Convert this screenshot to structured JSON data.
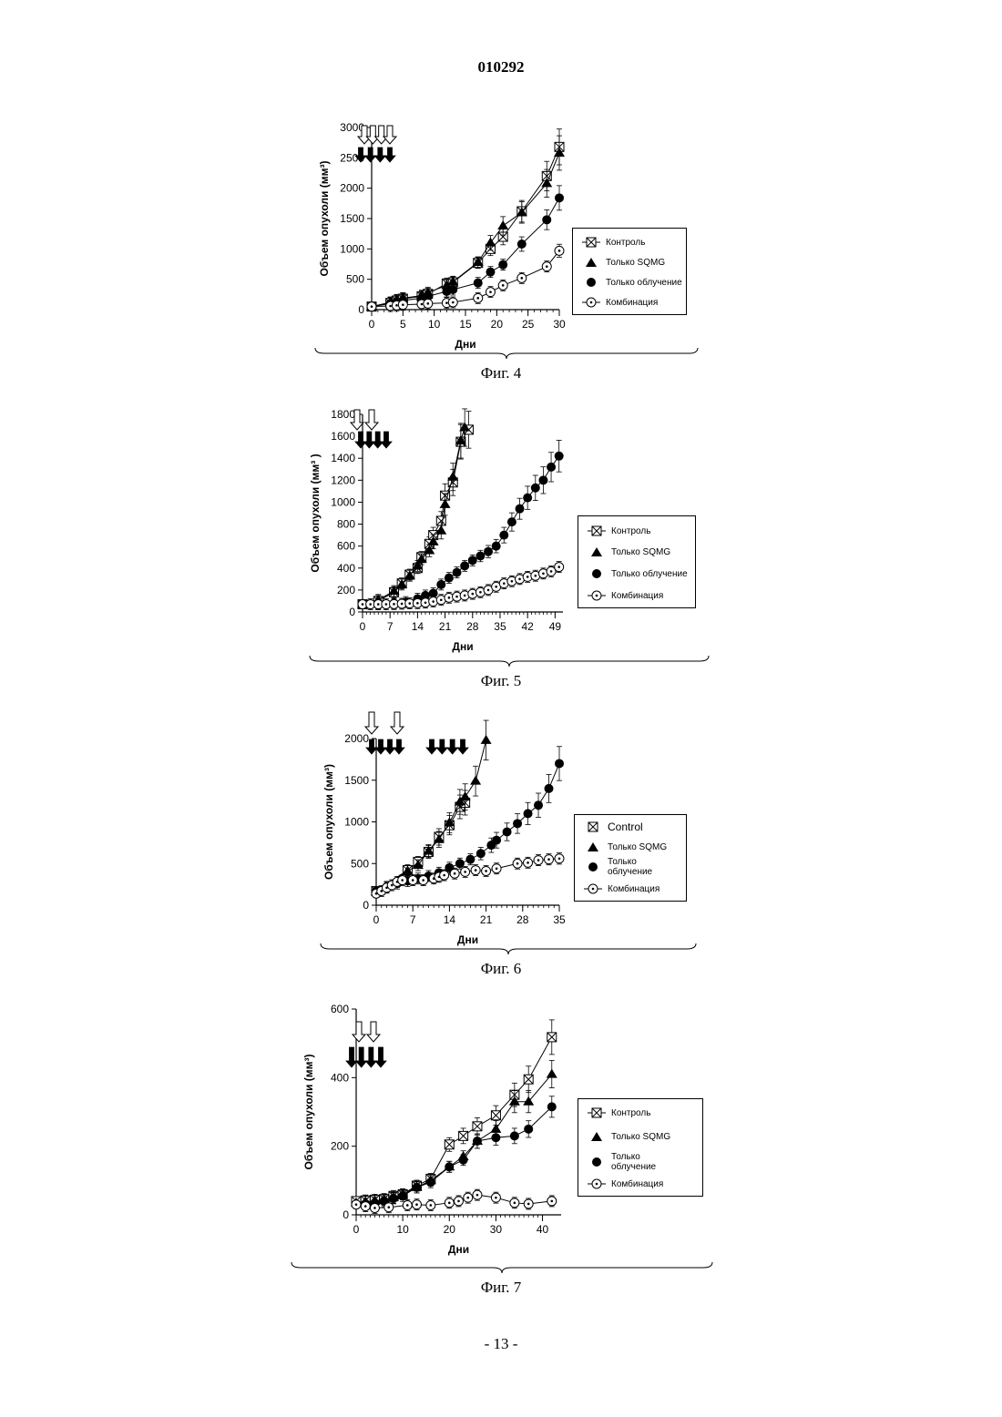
{
  "page": {
    "number": "010292",
    "footer": "- 13 -"
  },
  "figures": [
    {
      "caption": "Фиг. 4",
      "ylabel": "Объем опухоли (мм³)",
      "xlabel": "Дни",
      "legend": [
        "Контроль",
        "Только SQMG",
        "Только облучение",
        "Комбинация"
      ],
      "chart_data": {
        "type": "line",
        "xlim": [
          0,
          30
        ],
        "ylim": [
          0,
          3000
        ],
        "xticks": [
          0,
          5,
          10,
          15,
          20,
          25,
          30
        ],
        "yticks": [
          0,
          500,
          1000,
          1500,
          2000,
          2500,
          3000
        ],
        "series": [
          {
            "name": "Контроль",
            "marker": "square-x",
            "x": [
              0,
              3,
              4,
              5,
              8,
              9,
              12,
              13,
              17,
              19,
              21,
              24,
              28,
              30
            ],
            "y": [
              50,
              110,
              150,
              180,
              220,
              260,
              430,
              450,
              770,
              1000,
              1200,
              1620,
              2200,
              2680
            ]
          },
          {
            "name": "Только SQMG",
            "marker": "triangle",
            "x": [
              0,
              3,
              4,
              5,
              8,
              9,
              12,
              13,
              17,
              19,
              21,
              24,
              28,
              30
            ],
            "y": [
              50,
              120,
              160,
              190,
              230,
              280,
              400,
              460,
              780,
              1100,
              1380,
              1600,
              2080,
              2580
            ]
          },
          {
            "name": "Только облучение",
            "marker": "circle",
            "x": [
              0,
              3,
              4,
              5,
              8,
              9,
              12,
              13,
              17,
              19,
              21,
              24,
              28,
              30
            ],
            "y": [
              50,
              100,
              130,
              150,
              190,
              220,
              300,
              330,
              440,
              620,
              740,
              1080,
              1480,
              1840
            ]
          },
          {
            "name": "Комбинация",
            "marker": "dot-circle",
            "x": [
              0,
              3,
              4,
              5,
              8,
              9,
              12,
              13,
              17,
              19,
              21,
              24,
              28,
              30
            ],
            "y": [
              50,
              60,
              70,
              80,
              90,
              100,
              110,
              120,
              190,
              290,
              400,
              520,
              710,
              970
            ]
          }
        ]
      }
    },
    {
      "caption": "Фиг. 5",
      "ylabel": "Объем опухоли (мм³ )",
      "xlabel": "Дни",
      "legend": [
        "Контроль",
        "Только SQMG",
        "Только облучение",
        "Комбинация"
      ],
      "chart_data": {
        "type": "line",
        "xlim": [
          0,
          51
        ],
        "ylim": [
          0,
          1800
        ],
        "xticks": [
          0,
          7,
          14,
          21,
          28,
          35,
          42,
          49
        ],
        "yticks": [
          0,
          200,
          400,
          600,
          800,
          1000,
          1200,
          1400,
          1600,
          1800
        ],
        "series": [
          {
            "name": "Контроль",
            "marker": "square-x",
            "x": [
              0,
              4,
              8,
              10,
              12,
              14,
              15,
              17,
              18,
              20,
              21,
              23,
              25,
              27
            ],
            "y": [
              70,
              100,
              180,
              260,
              340,
              400,
              500,
              620,
              700,
              830,
              1060,
              1180,
              1550,
              1660
            ]
          },
          {
            "name": "Только SQMG",
            "marker": "triangle",
            "x": [
              0,
              4,
              8,
              10,
              12,
              14,
              15,
              17,
              18,
              20,
              21,
              23,
              25,
              26
            ],
            "y": [
              70,
              110,
              190,
              250,
              330,
              420,
              480,
              560,
              640,
              740,
              980,
              1230,
              1560,
              1680
            ]
          },
          {
            "name": "Только облучение",
            "marker": "circle",
            "x": [
              0,
              4,
              8,
              11,
              14,
              16,
              18,
              20,
              22,
              24,
              26,
              28,
              30,
              32,
              34,
              36,
              38,
              40,
              42,
              44,
              46,
              48,
              50
            ],
            "y": [
              70,
              75,
              80,
              90,
              120,
              150,
              170,
              250,
              310,
              360,
              420,
              470,
              510,
              550,
              600,
              700,
              820,
              940,
              1040,
              1130,
              1200,
              1320,
              1420
            ]
          },
          {
            "name": "Комбинация",
            "marker": "dot-circle",
            "x": [
              0,
              2,
              4,
              6,
              8,
              10,
              12,
              14,
              16,
              18,
              20,
              22,
              24,
              26,
              28,
              30,
              32,
              34,
              36,
              38,
              40,
              42,
              44,
              46,
              48,
              50
            ],
            "y": [
              70,
              70,
              70,
              70,
              72,
              75,
              78,
              80,
              85,
              95,
              110,
              130,
              140,
              150,
              165,
              180,
              200,
              230,
              260,
              280,
              300,
              320,
              330,
              350,
              370,
              410
            ]
          }
        ]
      }
    },
    {
      "caption": "Фиг. 6",
      "ylabel": "Объем опухоли (мм³)",
      "xlabel": "Дни",
      "legend": [
        "Control",
        "Только SQMG",
        "Только облучение",
        "Комбинация"
      ],
      "chart_data": {
        "type": "line",
        "xlim": [
          0,
          35
        ],
        "ylim": [
          0,
          2000
        ],
        "xticks": [
          0,
          7,
          14,
          21,
          28,
          35
        ],
        "yticks": [
          0,
          500,
          1000,
          1500,
          2000
        ],
        "series": [
          {
            "name": "Control",
            "marker": "square-x",
            "x": [
              0,
              6,
              8,
              10,
              12,
              14,
              16,
              17
            ],
            "y": [
              170,
              420,
              520,
              640,
              820,
              960,
              1180,
              1230
            ]
          },
          {
            "name": "Только SQMG",
            "marker": "triangle",
            "x": [
              0,
              6,
              8,
              10,
              12,
              14,
              16,
              17,
              19,
              21
            ],
            "y": [
              170,
              410,
              480,
              650,
              790,
              990,
              1240,
              1300,
              1490,
              1980
            ]
          },
          {
            "name": "Только облучение",
            "marker": "circle",
            "x": [
              0,
              2,
              4,
              6,
              8,
              10,
              12,
              14,
              16,
              18,
              20,
              22,
              23,
              25,
              27,
              29,
              31,
              33,
              35
            ],
            "y": [
              170,
              220,
              260,
              290,
              320,
              350,
              390,
              450,
              500,
              550,
              620,
              720,
              780,
              880,
              980,
              1100,
              1200,
              1400,
              1700
            ]
          },
          {
            "name": "Комбинация",
            "marker": "dot-circle",
            "x": [
              0,
              1,
              2,
              3,
              4,
              5,
              7,
              9,
              11,
              12,
              13,
              15,
              17,
              19,
              21,
              23,
              27,
              29,
              31,
              33,
              35
            ],
            "y": [
              140,
              170,
              210,
              240,
              280,
              300,
              300,
              300,
              320,
              340,
              360,
              380,
              400,
              420,
              410,
              440,
              500,
              510,
              540,
              550,
              560
            ]
          }
        ]
      }
    },
    {
      "caption": "Фиг. 7",
      "ylabel": "Объем опухоли (мм³)",
      "xlabel": "Дни",
      "legend": [
        "Контроль",
        "Только SQMG",
        "Только облучение",
        "Комбинация"
      ],
      "chart_data": {
        "type": "line",
        "xlim": [
          0,
          44
        ],
        "ylim": [
          0,
          600
        ],
        "xticks": [
          0,
          10,
          20,
          30,
          40
        ],
        "yticks": [
          0,
          200,
          400,
          600
        ],
        "series": [
          {
            "name": "Контроль",
            "marker": "square-x",
            "x": [
              0,
              2,
              4,
              6,
              8,
              10,
              13,
              16,
              20,
              23,
              26,
              30,
              34,
              37,
              42
            ],
            "y": [
              40,
              42,
              44,
              46,
              55,
              60,
              85,
              105,
              205,
              230,
              258,
              290,
              350,
              395,
              518
            ]
          },
          {
            "name": "Только SQMG",
            "marker": "triangle",
            "x": [
              0,
              2,
              4,
              6,
              8,
              10,
              13,
              16,
              20,
              23,
              26,
              30,
              34,
              37,
              42
            ],
            "y": [
              35,
              38,
              40,
              44,
              50,
              60,
              80,
              100,
              140,
              170,
              215,
              250,
              330,
              330,
              410
            ]
          },
          {
            "name": "Только облучение",
            "marker": "circle",
            "x": [
              0,
              2,
              4,
              6,
              8,
              10,
              13,
              16,
              20,
              23,
              26,
              30,
              34,
              37,
              42
            ],
            "y": [
              30,
              32,
              35,
              40,
              48,
              55,
              80,
              95,
              140,
              160,
              215,
              225,
              230,
              250,
              315
            ]
          },
          {
            "name": "Комбинация",
            "marker": "dot-circle",
            "x": [
              0,
              2,
              4,
              7,
              11,
              13,
              16,
              20,
              22,
              24,
              26,
              30,
              34,
              37,
              42
            ],
            "y": [
              30,
              25,
              20,
              22,
              28,
              30,
              28,
              35,
              40,
              50,
              58,
              50,
              35,
              32,
              40
            ]
          }
        ]
      }
    }
  ]
}
